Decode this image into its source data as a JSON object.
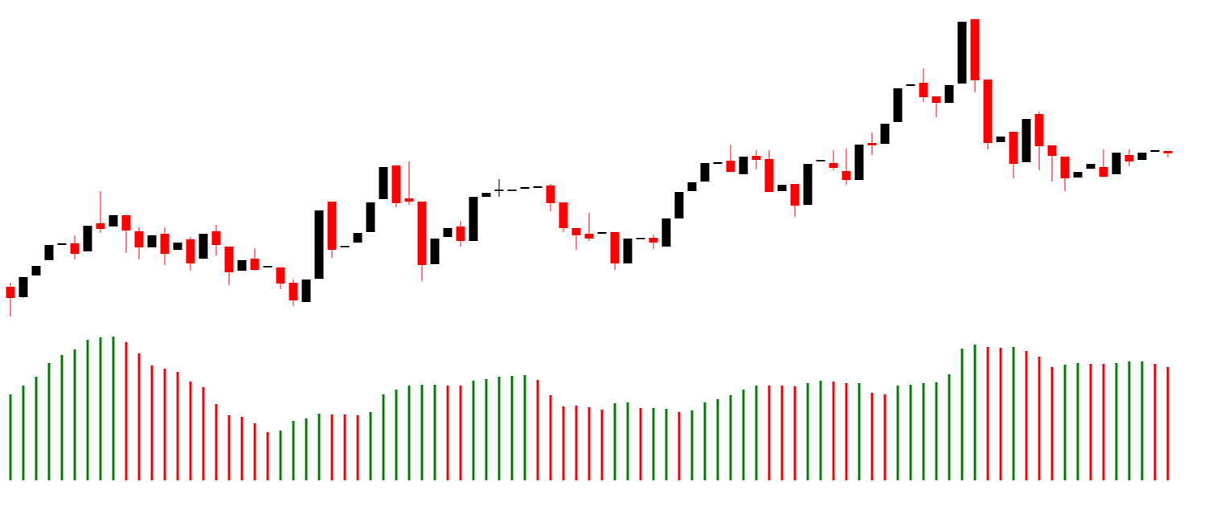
{
  "chart_data": [
    {
      "type": "candlestick",
      "up_color": "#000000",
      "down_color": "#ff0000",
      "ylim": [
        0,
        400
      ],
      "open": [
        43,
        30,
        57,
        76,
        96,
        97,
        87,
        122,
        118,
        132,
        112,
        92,
        109,
        89,
        102,
        78,
        112,
        93,
        63,
        78,
        68,
        67,
        48,
        24,
        53,
        149,
        93,
        98,
        111,
        152,
        194,
        153,
        149,
        71,
        105,
        118,
        100,
        155,
        163,
        163,
        166,
        167,
        169,
        148,
        116,
        109,
        110,
        111,
        72,
        103,
        104,
        93,
        128,
        162,
        174,
        197,
        200,
        183,
        206,
        202,
        162,
        171,
        145,
        200,
        197,
        187,
        176,
        222,
        221,
        248,
        294,
        297,
        280,
        272,
        296,
        376,
        301,
        223,
        236,
        198,
        258,
        219,
        205,
        179,
        190,
        192,
        183,
        207,
        201,
        212,
        212
      ],
      "high": [
        48,
        55,
        69,
        95,
        96,
        107,
        119,
        162,
        132,
        132,
        117,
        107,
        117,
        98,
        105,
        109,
        120,
        93,
        76,
        91,
        68,
        67,
        52,
        52,
        138,
        149,
        93,
        110,
        148,
        192,
        194,
        199,
        149,
        103,
        116,
        125,
        155,
        160,
        177,
        163,
        166,
        167,
        171,
        148,
        116,
        135,
        110,
        111,
        103,
        103,
        108,
        128,
        161,
        173,
        197,
        197,
        220,
        205,
        213,
        213,
        170,
        171,
        196,
        200,
        213,
        215,
        220,
        235,
        246,
        290,
        294,
        315,
        280,
        294,
        373,
        376,
        301,
        230,
        236,
        252,
        261,
        219,
        205,
        186,
        196,
        214,
        210,
        214,
        210,
        212,
        212
      ],
      "low": [
        6,
        29,
        57,
        76,
        96,
        77,
        87,
        110,
        118,
        85,
        77,
        92,
        70,
        89,
        63,
        78,
        82,
        45,
        63,
        63,
        68,
        40,
        19,
        24,
        53,
        79,
        93,
        98,
        111,
        152,
        142,
        145,
        50,
        71,
        105,
        93,
        100,
        155,
        155,
        163,
        166,
        167,
        137,
        111,
        89,
        100,
        110,
        64,
        72,
        103,
        90,
        93,
        128,
        162,
        174,
        197,
        186,
        183,
        189,
        161,
        162,
        130,
        145,
        200,
        188,
        170,
        176,
        207,
        221,
        248,
        294,
        273,
        254,
        272,
        296,
        285,
        214,
        223,
        178,
        198,
        188,
        174,
        162,
        179,
        190,
        179,
        183,
        193,
        201,
        212,
        204
      ],
      "close": [
        29,
        55,
        69,
        95,
        96,
        84,
        119,
        115,
        132,
        113,
        92,
        107,
        84,
        98,
        72,
        109,
        95,
        61,
        76,
        64,
        68,
        47,
        26,
        52,
        138,
        89,
        93,
        110,
        148,
        192,
        147,
        149,
        70,
        103,
        116,
        100,
        155,
        160,
        163,
        163,
        166,
        167,
        147,
        116,
        107,
        103,
        110,
        72,
        103,
        103,
        98,
        128,
        161,
        173,
        197,
        197,
        186,
        205,
        201,
        161,
        170,
        144,
        196,
        200,
        191,
        176,
        220,
        219,
        246,
        290,
        294,
        279,
        272,
        294,
        373,
        300,
        222,
        230,
        196,
        252,
        218,
        206,
        178,
        186,
        196,
        180,
        210,
        199,
        210,
        212,
        209
      ]
    },
    {
      "type": "bar",
      "ylim": [
        0,
        180
      ],
      "values": [
        107,
        118,
        129,
        146,
        156,
        163,
        175,
        178,
        179,
        172,
        158,
        143,
        139,
        135,
        123,
        116,
        95,
        81,
        79,
        71,
        60,
        62,
        74,
        77,
        83,
        82,
        82,
        81,
        85,
        107,
        113,
        118,
        119,
        119,
        118,
        118,
        124,
        126,
        129,
        130,
        131,
        125,
        106,
        92,
        93,
        91,
        88,
        96,
        97,
        90,
        90,
        89,
        85,
        87,
        97,
        101,
        106,
        113,
        118,
        118,
        118,
        117,
        121,
        124,
        123,
        121,
        121,
        109,
        107,
        118,
        119,
        121,
        122,
        132,
        164,
        169,
        166,
        165,
        166,
        161,
        154,
        141,
        144,
        146,
        145,
        145,
        146,
        148,
        148,
        145,
        141
      ],
      "colors": [
        "#008000",
        "#008000",
        "#008000",
        "#008000",
        "#008000",
        "#008000",
        "#008000",
        "#008000",
        "#008000",
        "#ff0000",
        "#ff0000",
        "#ff0000",
        "#ff0000",
        "#ff0000",
        "#ff0000",
        "#ff0000",
        "#ff0000",
        "#ff0000",
        "#ff0000",
        "#ff0000",
        "#ff0000",
        "#008000",
        "#008000",
        "#008000",
        "#008000",
        "#ff0000",
        "#ff0000",
        "#ff0000",
        "#008000",
        "#008000",
        "#008000",
        "#008000",
        "#008000",
        "#008000",
        "#ff0000",
        "#ff0000",
        "#008000",
        "#008000",
        "#008000",
        "#008000",
        "#008000",
        "#ff0000",
        "#ff0000",
        "#ff0000",
        "#ff0000",
        "#ff0000",
        "#ff0000",
        "#008000",
        "#008000",
        "#ff0000",
        "#008000",
        "#008000",
        "#ff0000",
        "#008000",
        "#008000",
        "#008000",
        "#008000",
        "#008000",
        "#008000",
        "#ff0000",
        "#ff0000",
        "#ff0000",
        "#008000",
        "#008000",
        "#ff0000",
        "#ff0000",
        "#008000",
        "#ff0000",
        "#ff0000",
        "#008000",
        "#008000",
        "#008000",
        "#008000",
        "#008000",
        "#008000",
        "#008000",
        "#ff0000",
        "#ff0000",
        "#008000",
        "#ff0000",
        "#ff0000",
        "#ff0000",
        "#008000",
        "#008000",
        "#ff0000",
        "#ff0000",
        "#008000",
        "#008000",
        "#008000",
        "#ff0000",
        "#ff0000"
      ]
    }
  ]
}
